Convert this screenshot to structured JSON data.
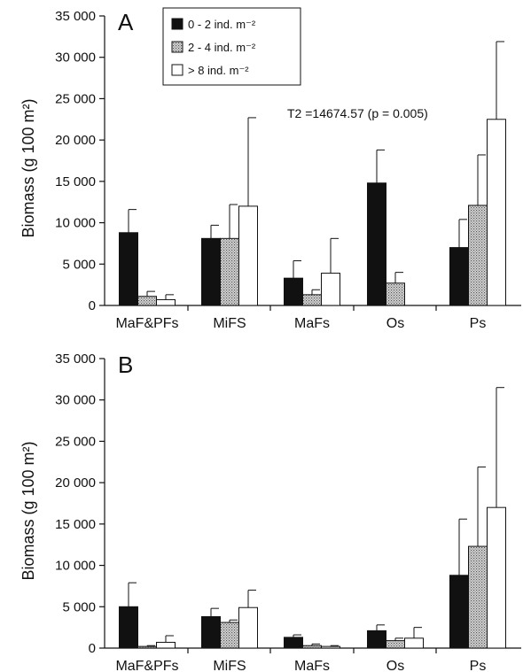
{
  "chart_data": [
    {
      "type": "bar",
      "panel_label": "A",
      "categories": [
        "MaF&PFs",
        "MiFS",
        "MaFs",
        "Os",
        "Ps"
      ],
      "ylabel": "Biomass (g 100 m²)",
      "ylim": [
        0,
        35000
      ],
      "yticks": [
        "0",
        "5 000",
        "10 000",
        "15 000",
        "20 000",
        "25 000",
        "30 000",
        "35 000"
      ],
      "annotation": "T2 =14674.57 (p = 0.005)",
      "legend_position": "top-left",
      "series": [
        {
          "name": "0 - 2 ind. m⁻²",
          "color": "#111111",
          "values": [
            8800,
            8100,
            3300,
            14800,
            7000
          ],
          "errors": [
            2800,
            1600,
            2100,
            4000,
            3400
          ]
        },
        {
          "name": "2 - 4 ind. m⁻²",
          "color": "#b8b8b8",
          "values": [
            1100,
            8100,
            1300,
            2700,
            12100
          ],
          "errors": [
            600,
            4100,
            600,
            1300,
            6100
          ]
        },
        {
          "name": "> 8 ind. m⁻²",
          "color": "#ffffff",
          "values": [
            700,
            12000,
            3900,
            0,
            22500
          ],
          "errors": [
            600,
            10700,
            4200,
            0,
            9400
          ]
        }
      ]
    },
    {
      "type": "bar",
      "panel_label": "B",
      "categories": [
        "MaF&PFs",
        "MiFS",
        "MaFs",
        "Os",
        "Ps"
      ],
      "ylabel": "Biomass (g 100 m²)",
      "ylim": [
        0,
        35000
      ],
      "yticks": [
        "0",
        "5 000",
        "10 000",
        "15 000",
        "20 000",
        "25 000",
        "30 000",
        "35 000"
      ],
      "series": [
        {
          "name": "0 - 2 ind. m⁻²",
          "color": "#111111",
          "values": [
            5000,
            3800,
            1300,
            2100,
            8800
          ],
          "errors": [
            2900,
            1000,
            300,
            700,
            6800
          ]
        },
        {
          "name": "2 - 4 ind. m⁻²",
          "color": "#b8b8b8",
          "values": [
            200,
            3100,
            300,
            900,
            12300
          ],
          "errors": [
            100,
            300,
            200,
            300,
            9600
          ]
        },
        {
          "name": "> 8 ind. m⁻²",
          "color": "#ffffff",
          "values": [
            700,
            4900,
            200,
            1200,
            17000
          ],
          "errors": [
            800,
            2100,
            100,
            1300,
            14500
          ]
        }
      ]
    }
  ]
}
